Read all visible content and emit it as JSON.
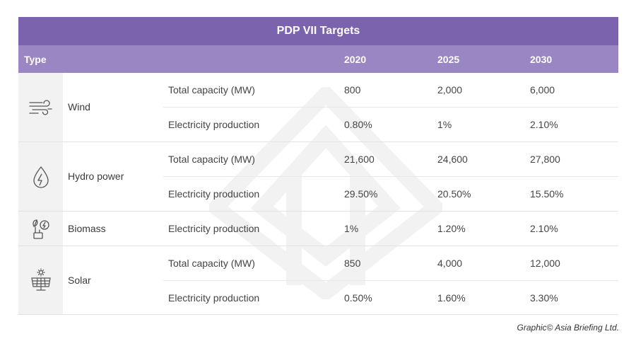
{
  "title": "PDP VII Targets",
  "columns": {
    "type": "Type",
    "y2020": "2020",
    "y2025": "2025",
    "y2030": "2030"
  },
  "groups": [
    {
      "type": "Wind",
      "icon": "wind-icon",
      "rows": [
        {
          "metric": "Total capacity (MW)",
          "v2020": "800",
          "v2025": "2,000",
          "v2030": "6,000"
        },
        {
          "metric": "Electricity production",
          "v2020": "0.80%",
          "v2025": "1%",
          "v2030": "2.10%"
        }
      ]
    },
    {
      "type": "Hydro power",
      "icon": "hydro-icon",
      "rows": [
        {
          "metric": "Total capacity (MW)",
          "v2020": "21,600",
          "v2025": "24,600",
          "v2030": "27,800"
        },
        {
          "metric": "Electricity production",
          "v2020": "29.50%",
          "v2025": "20.50%",
          "v2030": "15.50%"
        }
      ]
    },
    {
      "type": "Biomass",
      "icon": "biomass-icon",
      "rows": [
        {
          "metric": "Electricity production",
          "v2020": "1%",
          "v2025": "1.20%",
          "v2030": "2.10%"
        }
      ]
    },
    {
      "type": "Solar",
      "icon": "solar-icon",
      "rows": [
        {
          "metric": "Total capacity (MW)",
          "v2020": "850",
          "v2025": "4,000",
          "v2030": "12,000"
        },
        {
          "metric": "Electricity production",
          "v2020": "0.50%",
          "v2025": "1.60%",
          "v2030": "3.30%"
        }
      ]
    }
  ],
  "credit": "Graphic© Asia Briefing Ltd.",
  "colors": {
    "title_bg": "#7c63ad",
    "header_bg": "#9a86c3",
    "icon_bg": "#f2f2f2"
  }
}
